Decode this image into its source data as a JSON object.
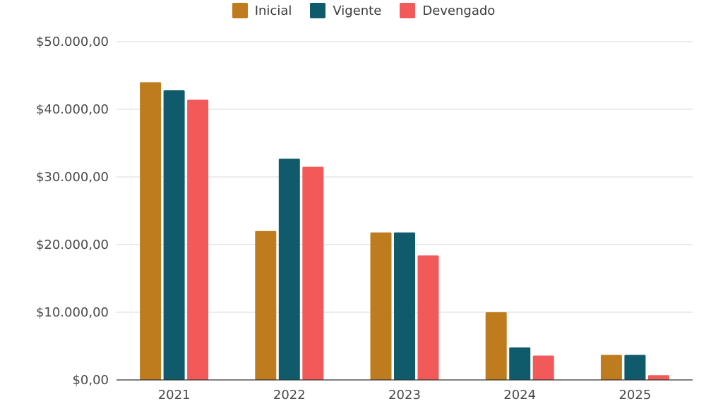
{
  "chart_data": {
    "type": "bar",
    "title": "",
    "xlabel": "",
    "ylabel": "",
    "categories": [
      "2021",
      "2022",
      "2023",
      "2024",
      "2025"
    ],
    "series": [
      {
        "name": "Inicial",
        "color": "#bf7c1f",
        "values": [
          44000,
          22000,
          21800,
          10000,
          3700
        ]
      },
      {
        "name": "Vigente",
        "color": "#0f5a6b",
        "values": [
          42800,
          32700,
          21800,
          4800,
          3700
        ]
      },
      {
        "name": "Devengado",
        "color": "#f25a5a",
        "values": [
          41400,
          31500,
          18400,
          3600,
          700
        ]
      }
    ],
    "ylim": [
      0,
      50000
    ],
    "yticks": [
      0,
      10000,
      20000,
      30000,
      40000,
      50000
    ],
    "ytick_labels": [
      "$0,00",
      "$10.000,00",
      "$20.000,00",
      "$30.000,00",
      "$40.000,00",
      "$50.000,00"
    ],
    "grid": true,
    "legend_position": "top-center"
  }
}
